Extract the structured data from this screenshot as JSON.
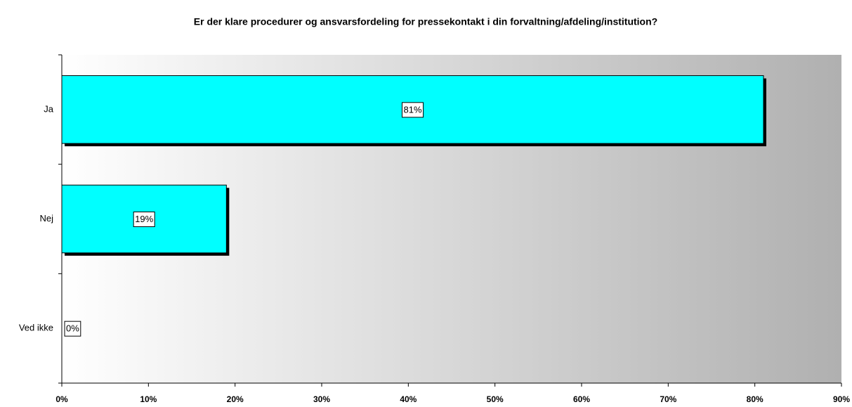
{
  "chart_data": {
    "type": "bar",
    "orientation": "horizontal",
    "title": "Er der klare procedurer og ansvarsfordeling for pressekontakt i din forvaltning/afdeling/institution?",
    "categories": [
      "Ja",
      "Nej",
      "Ved ikke"
    ],
    "values": [
      81,
      19,
      0
    ],
    "value_labels": [
      "81%",
      "19%",
      "0%"
    ],
    "color": "#00ffff",
    "xlim": [
      0,
      90
    ],
    "xticks": [
      {
        "value": 0,
        "label": "0%"
      },
      {
        "value": 10,
        "label": "10%"
      },
      {
        "value": 20,
        "label": "20%"
      },
      {
        "value": 30,
        "label": "30%"
      },
      {
        "value": 40,
        "label": "40%"
      },
      {
        "value": 50,
        "label": "50%"
      },
      {
        "value": 60,
        "label": "60%"
      },
      {
        "value": 70,
        "label": "70%"
      },
      {
        "value": 80,
        "label": "80%"
      },
      {
        "value": 90,
        "label": "90%"
      }
    ]
  }
}
